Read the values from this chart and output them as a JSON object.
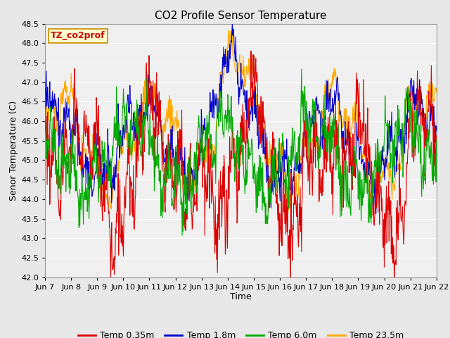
{
  "title": "CO2 Profile Sensor Temperature",
  "xlabel": "Time",
  "ylabel": "Senor Temperature (C)",
  "annotation": "TZ_co2prof",
  "ylim": [
    42.0,
    48.5
  ],
  "yticks": [
    42.0,
    42.5,
    43.0,
    43.5,
    44.0,
    44.5,
    45.0,
    45.5,
    46.0,
    46.5,
    47.0,
    47.5,
    48.0,
    48.5
  ],
  "xlim_days": [
    7,
    22
  ],
  "xtick_labels": [
    "Jun 7",
    "Jun 8",
    "Jun 9",
    "Jun 10",
    "Jun 11",
    "Jun 12",
    "Jun 13",
    "Jun 14",
    "Jun 15",
    "Jun 16",
    "Jun 17",
    "Jun 18",
    "Jun 19",
    "Jun 20",
    "Jun 21",
    "Jun 22"
  ],
  "colors": {
    "red": "#dd0000",
    "blue": "#0000cc",
    "green": "#00aa00",
    "orange": "#ffaa00"
  },
  "legend_labels": [
    "Temp 0.35m",
    "Temp 1.8m",
    "Temp 6.0m",
    "Temp 23.5m"
  ],
  "bg_color": "#e8e8e8",
  "plot_bg_color": "#f0f0f0",
  "grid_color": "#ffffff",
  "title_fontsize": 11,
  "label_fontsize": 9,
  "tick_fontsize": 8,
  "legend_fontsize": 9,
  "annotation_fontsize": 9,
  "linewidth": 0.8
}
